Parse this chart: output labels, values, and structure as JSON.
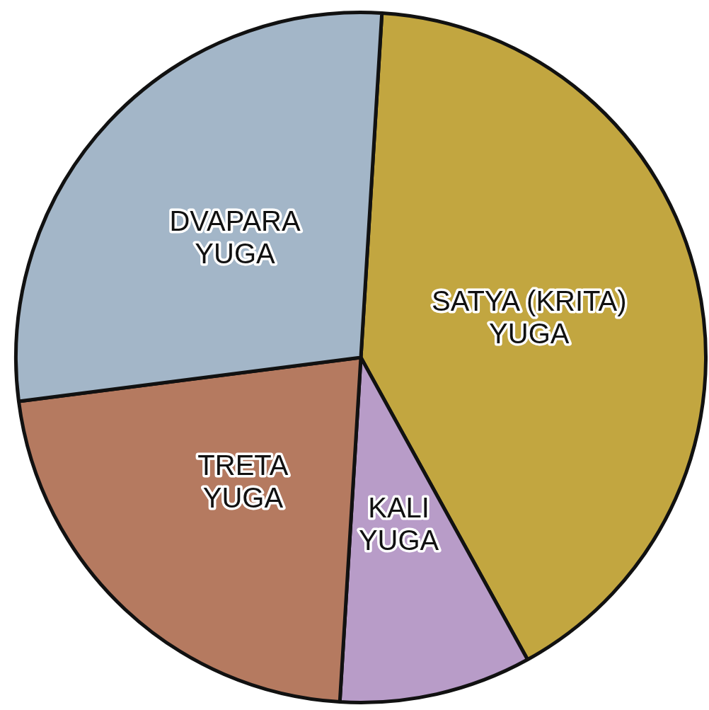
{
  "chart_data": {
    "type": "pie",
    "categories": [
      "SATYA (KRITA) YUGA",
      "KALI YUGA",
      "TRETA YUGA",
      "DVAPARA YUGA"
    ],
    "values": [
      41,
      9,
      22,
      28
    ],
    "colors": [
      "#c2a640",
      "#b89cc8",
      "#b57a60",
      "#a3b6c8"
    ],
    "legend": false
  }
}
